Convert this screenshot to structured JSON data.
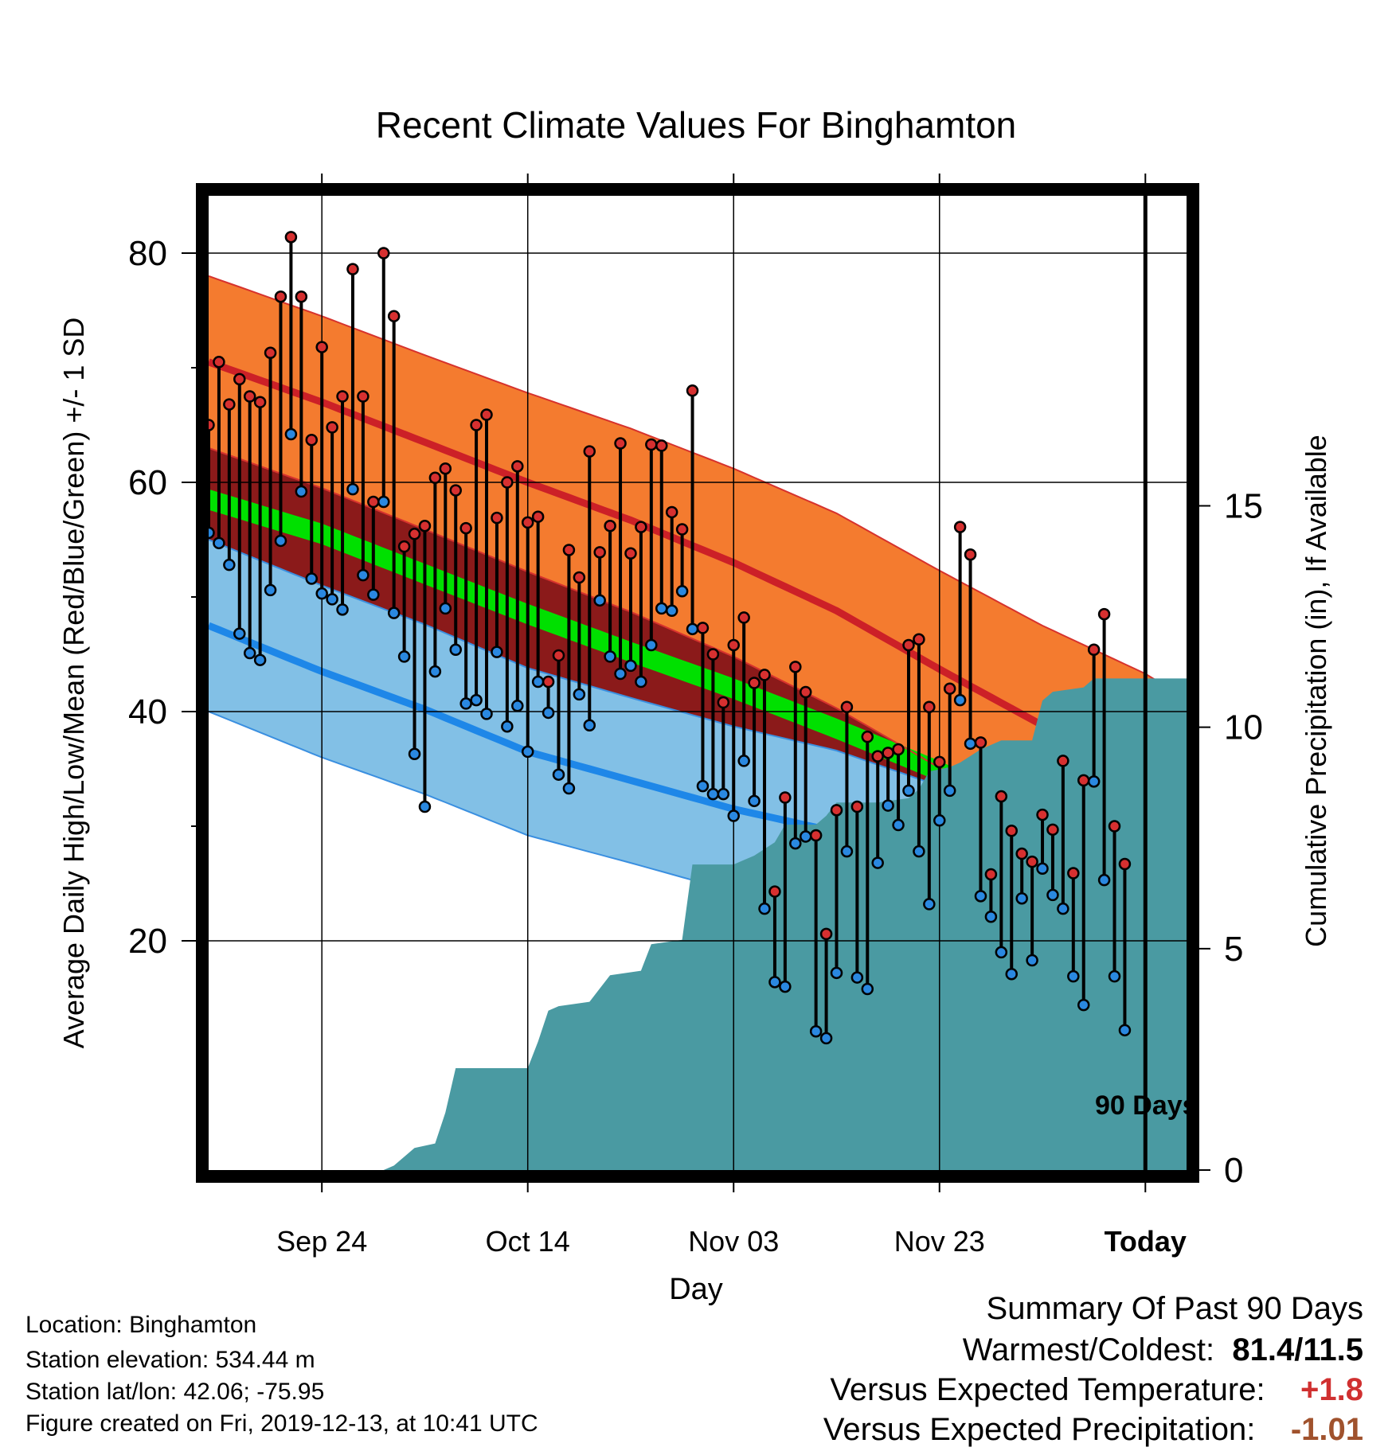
{
  "chart_data": {
    "type": "line",
    "title": "Recent Climate Values For Binghamton",
    "xlabel": "Day",
    "ylabel": "Average Daily High/Low/Mean (Red/Blue/Green) +/- 1 SD",
    "y2label": "Cumulative Precipitation (in), If Available",
    "ylim": [
      0,
      85
    ],
    "y2lim": [
      0,
      22
    ],
    "y_ticks": [
      "20",
      "40",
      "60",
      "80"
    ],
    "y2_ticks": [
      "0",
      "5",
      "10",
      "15"
    ],
    "x_ticks": [
      "Sep 24",
      "Oct 14",
      "Nov 03",
      "Nov 23",
      "Today"
    ],
    "start_date": "2019-09-13",
    "end_date": "2019-12-17",
    "today_date": "2019-12-13",
    "today_marker_label": "90 Days",
    "colors": {
      "high_band": "#f47b2f",
      "high_mean": "#cc2027",
      "high_edge": "#d6322d",
      "low_band": "#82c0e6",
      "low_mean": "#1e87e8",
      "low_edge": "#3a8fe0",
      "mean_band": "#00e000",
      "overlap": "#8b1a1a",
      "precip": "#4a9aa2",
      "high_dot": "#d63030",
      "low_dot": "#2a88e0"
    },
    "normals": [
      {
        "date": "2019-09-13",
        "high": 70.5,
        "high_sd": 7.5,
        "low": 47.5,
        "low_sd": 7.5,
        "mean": 58.5
      },
      {
        "date": "2019-09-24",
        "high": 67.0,
        "high_sd": 7.5,
        "low": 43.5,
        "low_sd": 7.5,
        "mean": 55.5
      },
      {
        "date": "2019-10-04",
        "high": 63.5,
        "high_sd": 7.6,
        "low": 40.2,
        "low_sd": 7.4,
        "mean": 52.0
      },
      {
        "date": "2019-10-14",
        "high": 60.0,
        "high_sd": 7.8,
        "low": 36.5,
        "low_sd": 7.3,
        "mean": 48.5
      },
      {
        "date": "2019-10-24",
        "high": 56.7,
        "high_sd": 8.0,
        "low": 34.0,
        "low_sd": 7.2,
        "mean": 45.2
      },
      {
        "date": "2019-11-03",
        "high": 53.0,
        "high_sd": 8.2,
        "low": 31.5,
        "low_sd": 7.2,
        "mean": 42.0
      },
      {
        "date": "2019-11-13",
        "high": 48.8,
        "high_sd": 8.5,
        "low": 29.5,
        "low_sd": 7.1,
        "mean": 38.5
      },
      {
        "date": "2019-11-23",
        "high": 43.7,
        "high_sd": 8.6,
        "low": 26.5,
        "low_sd": 7.0,
        "mean": 34.8
      },
      {
        "date": "2019-12-03",
        "high": 38.8,
        "high_sd": 8.7,
        "low": 23.0,
        "low_sd": 7.0,
        "mean": 30.5
      },
      {
        "date": "2019-12-13",
        "high": 34.5,
        "high_sd": 8.8,
        "low": 19.8,
        "low_sd": 7.0,
        "mean": 26.5
      },
      {
        "date": "2019-12-17",
        "high": 32.3,
        "high_sd": 8.8,
        "low": 18.5,
        "low_sd": 7.0,
        "mean": 24.5
      }
    ],
    "observed": {
      "high": [
        65.0,
        70.5,
        66.8,
        69.0,
        67.5,
        67.0,
        71.3,
        76.2,
        81.4,
        76.2,
        63.7,
        71.8,
        64.8,
        67.5,
        78.6,
        67.5,
        58.3,
        80.0,
        74.5,
        54.4,
        55.5,
        56.2,
        60.4,
        61.2,
        59.3,
        56.0,
        65.0,
        65.9,
        56.9,
        60.0,
        61.4,
        56.5,
        57.0,
        42.6,
        44.9,
        54.1,
        51.7,
        62.7,
        53.9,
        56.2,
        63.4,
        53.8,
        56.1,
        63.3,
        63.2,
        57.4,
        55.9,
        68.0,
        47.3,
        45.0,
        40.8,
        45.8,
        48.2,
        42.5,
        43.2,
        24.3,
        32.5,
        43.9,
        41.7,
        29.2,
        20.6,
        31.4,
        40.4,
        31.7,
        37.8,
        36.1,
        36.4,
        36.7,
        45.8,
        46.3,
        40.4,
        35.6,
        42.0,
        56.1,
        53.7,
        37.3,
        25.8,
        32.6,
        29.6,
        27.6,
        26.9,
        31.0,
        29.7,
        35.7,
        25.9,
        34.0,
        45.4,
        48.5,
        30.0,
        26.7
      ],
      "low": [
        55.6,
        54.7,
        52.8,
        46.8,
        45.1,
        44.5,
        50.6,
        54.9,
        64.2,
        59.2,
        51.6,
        50.3,
        49.8,
        48.9,
        59.4,
        51.9,
        50.2,
        58.3,
        48.6,
        44.8,
        36.3,
        31.7,
        43.5,
        49.0,
        45.4,
        40.7,
        41.0,
        39.8,
        45.2,
        38.7,
        40.5,
        36.5,
        42.6,
        39.9,
        34.5,
        33.3,
        41.5,
        38.8,
        49.7,
        44.8,
        43.3,
        44.0,
        42.6,
        45.8,
        49.0,
        48.8,
        50.5,
        47.2,
        33.5,
        32.8,
        32.8,
        30.9,
        35.7,
        32.2,
        22.8,
        16.4,
        16.0,
        28.5,
        29.1,
        12.1,
        11.5,
        17.2,
        27.8,
        16.8,
        15.8,
        26.8,
        31.8,
        30.1,
        33.1,
        27.8,
        23.2,
        30.5,
        33.1,
        41.0,
        37.2,
        23.9,
        22.1,
        19.0,
        17.1,
        23.7,
        18.3,
        26.3,
        24.0,
        22.8,
        16.9,
        14.4,
        33.9,
        25.3,
        16.9,
        12.2
      ]
    },
    "precip_cumulative": [
      {
        "date": "2019-09-13",
        "value": 0.0
      },
      {
        "date": "2019-09-30",
        "value": 0.0
      },
      {
        "date": "2019-10-01",
        "value": 0.1
      },
      {
        "date": "2019-10-03",
        "value": 0.5
      },
      {
        "date": "2019-10-05",
        "value": 0.6
      },
      {
        "date": "2019-10-06",
        "value": 1.3
      },
      {
        "date": "2019-10-07",
        "value": 2.3
      },
      {
        "date": "2019-10-14",
        "value": 2.3
      },
      {
        "date": "2019-10-15",
        "value": 2.9
      },
      {
        "date": "2019-10-16",
        "value": 3.6
      },
      {
        "date": "2019-10-17",
        "value": 3.7
      },
      {
        "date": "2019-10-20",
        "value": 3.8
      },
      {
        "date": "2019-10-21",
        "value": 4.1
      },
      {
        "date": "2019-10-22",
        "value": 4.4
      },
      {
        "date": "2019-10-25",
        "value": 4.5
      },
      {
        "date": "2019-10-26",
        "value": 5.1
      },
      {
        "date": "2019-10-29",
        "value": 5.2
      },
      {
        "date": "2019-10-30",
        "value": 6.9
      },
      {
        "date": "2019-11-03",
        "value": 6.9
      },
      {
        "date": "2019-11-04",
        "value": 7.0
      },
      {
        "date": "2019-11-05",
        "value": 7.1
      },
      {
        "date": "2019-11-07",
        "value": 7.4
      },
      {
        "date": "2019-11-08",
        "value": 7.8
      },
      {
        "date": "2019-11-11",
        "value": 7.8
      },
      {
        "date": "2019-11-12",
        "value": 8.0
      },
      {
        "date": "2019-11-13",
        "value": 8.3
      },
      {
        "date": "2019-11-17",
        "value": 8.3
      },
      {
        "date": "2019-11-20",
        "value": 8.4
      },
      {
        "date": "2019-11-21",
        "value": 8.6
      },
      {
        "date": "2019-11-22",
        "value": 9.0
      },
      {
        "date": "2019-11-24",
        "value": 9.1
      },
      {
        "date": "2019-11-25",
        "value": 9.2
      },
      {
        "date": "2019-11-27",
        "value": 9.5
      },
      {
        "date": "2019-11-28",
        "value": 9.6
      },
      {
        "date": "2019-11-29",
        "value": 9.7
      },
      {
        "date": "2019-12-02",
        "value": 9.7
      },
      {
        "date": "2019-12-03",
        "value": 10.6
      },
      {
        "date": "2019-12-04",
        "value": 10.8
      },
      {
        "date": "2019-12-07",
        "value": 10.9
      },
      {
        "date": "2019-12-08",
        "value": 11.1
      },
      {
        "date": "2019-12-17",
        "value": 11.1
      }
    ]
  },
  "info": {
    "location": "Location: Binghamton",
    "elevation": "Station elevation: 534.44 m",
    "latlon": "Station lat/lon: 42.06; -75.95",
    "created": "Figure created on Fri, 2019-12-13, at 10:41 UTC"
  },
  "summary": {
    "heading": "Summary Of Past 90 Days",
    "warmest_label": "Warmest/Coldest:",
    "warmest_value": "81.4/11.5",
    "temp_label": "Versus Expected Temperature:",
    "temp_value": "+1.8",
    "temp_color": "#d03030",
    "precip_label": "Versus Expected Precipitation:",
    "precip_value": "-1.01",
    "precip_color": "#a0522d"
  }
}
